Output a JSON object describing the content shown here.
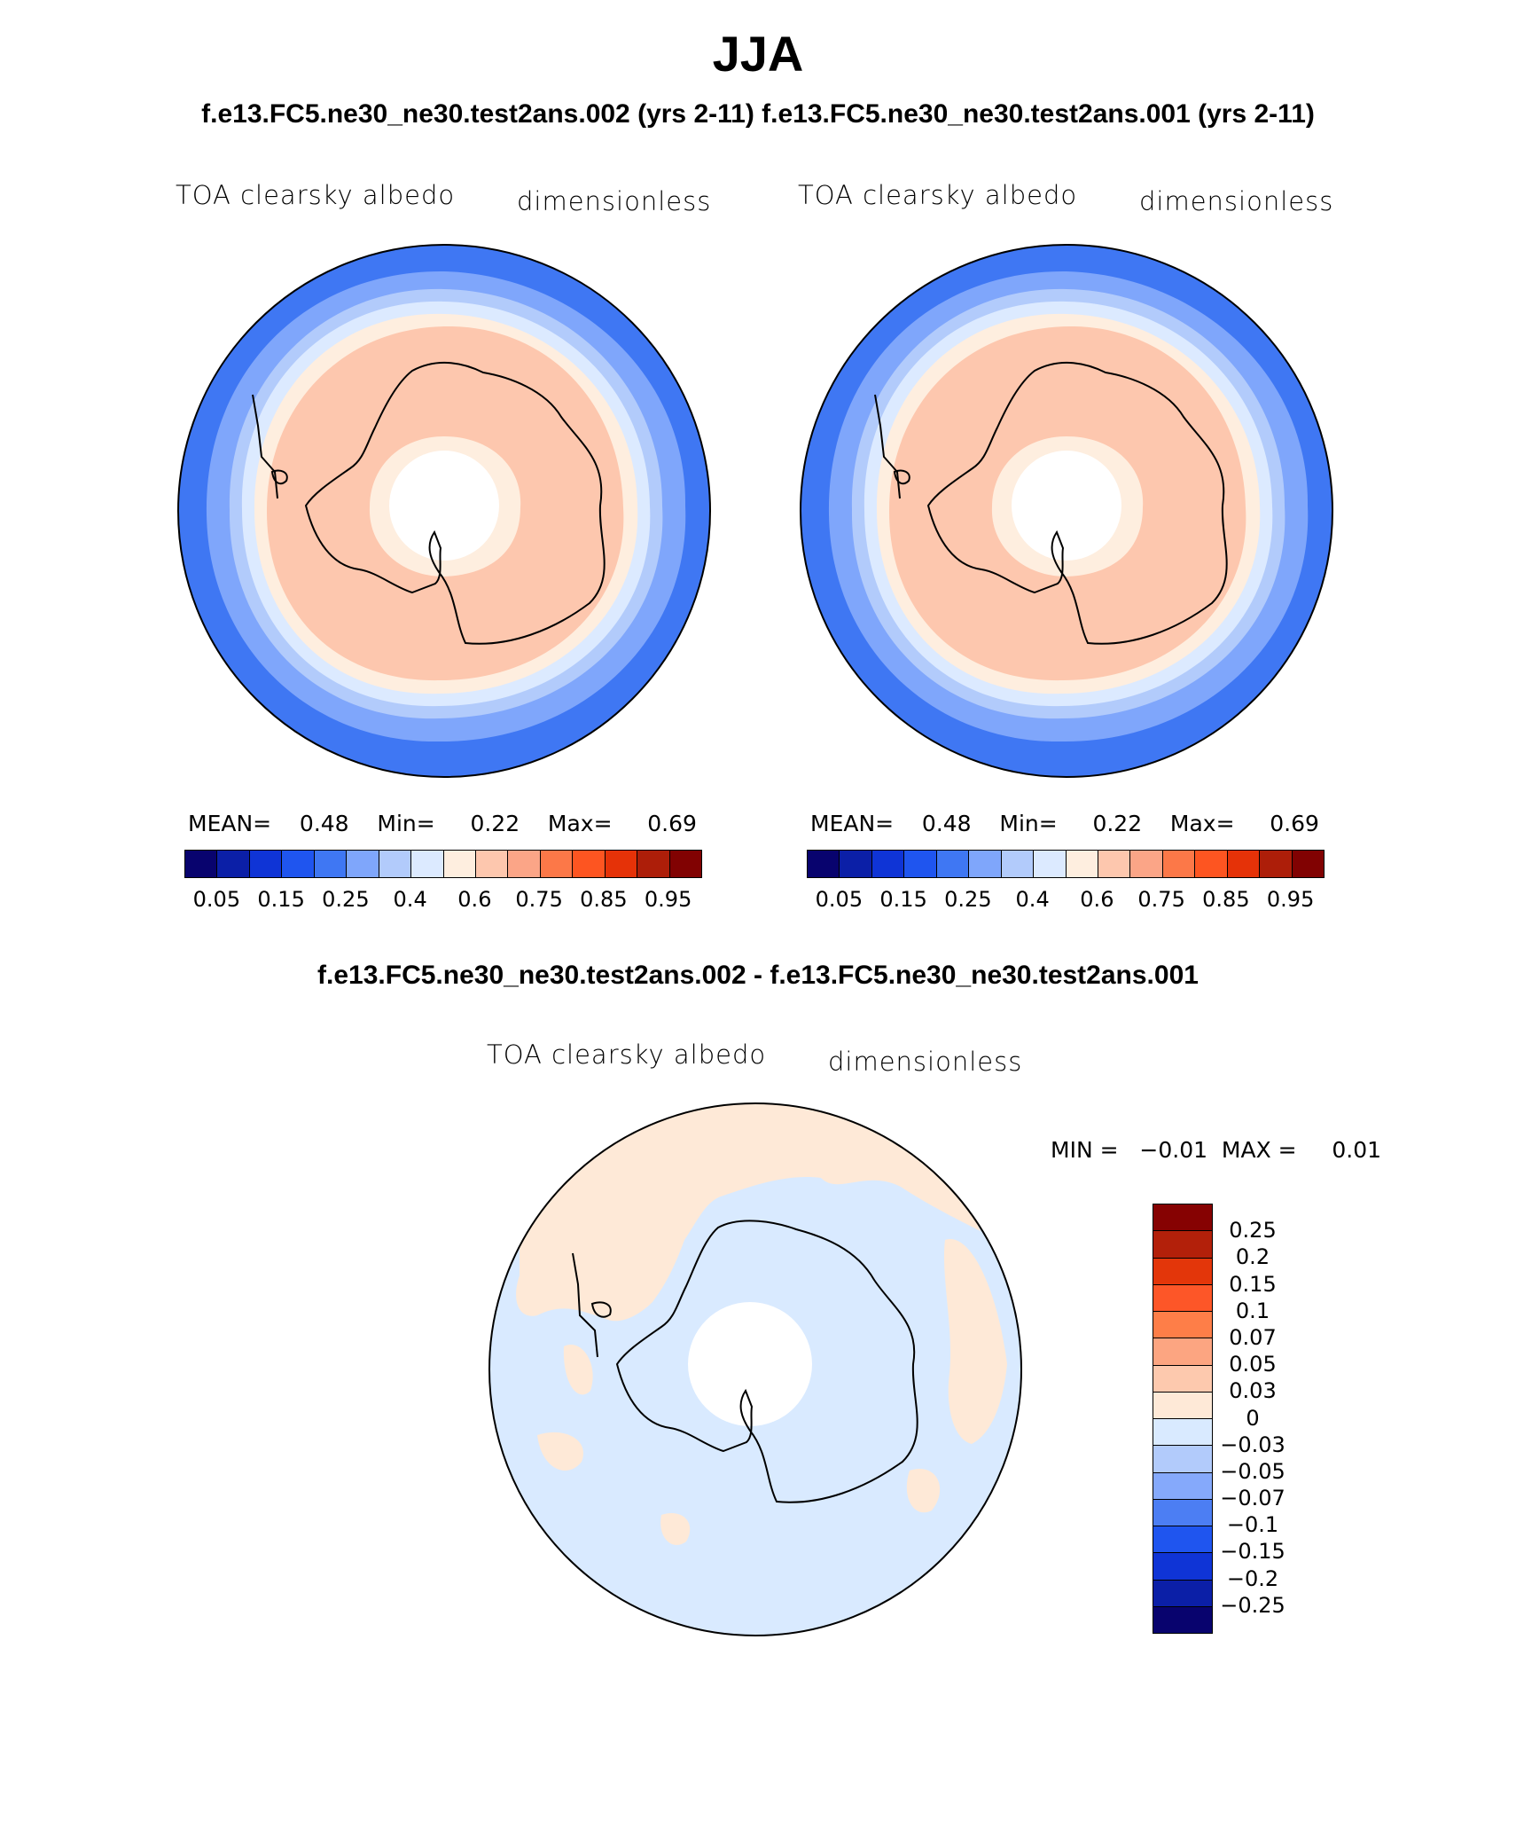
{
  "title": "JJA",
  "subtitle": "f.e13.FC5.ne30_ne30.test2ans.002 (yrs 2-11) f.e13.FC5.ne30_ne30.test2ans.001 (yrs 2-11)",
  "panels": [
    {
      "variable": "TOA clearsky albedo",
      "units": "dimensionless",
      "stats": {
        "mean_label": "MEAN=",
        "mean": "0.48",
        "min_label": "Min=",
        "min": "0.22",
        "max_label": "Max=",
        "max": "0.69"
      }
    },
    {
      "variable": "TOA clearsky albedo",
      "units": "dimensionless",
      "stats": {
        "mean_label": "MEAN=",
        "mean": "0.48",
        "min_label": "Min=",
        "min": "0.22",
        "max_label": "Max=",
        "max": "0.69"
      }
    }
  ],
  "colorbar": {
    "colors": [
      "#08036e",
      "#0b1fa7",
      "#0f34d6",
      "#1f55ef",
      "#3f77f3",
      "#7fa6fb",
      "#b2cbfb",
      "#dceaff",
      "#feeedf",
      "#fdc7ae",
      "#fba587",
      "#fc7848",
      "#fd5521",
      "#e53208",
      "#ad1e09",
      "#810202"
    ],
    "ticks": [
      "0.05",
      "0.15",
      "0.25",
      "0.4",
      "0.6",
      "0.75",
      "0.85",
      "0.95"
    ]
  },
  "diff": {
    "title": "f.e13.FC5.ne30_ne30.test2ans.002 - f.e13.FC5.ne30_ne30.test2ans.001",
    "variable": "TOA clearsky albedo",
    "units": "dimensionless",
    "stats": {
      "min_label": "MIN =",
      "min": "−0.01",
      "max_label": "MAX =",
      "max": "0.01"
    },
    "colorbar": {
      "colors": [
        "#860202",
        "#b3200a",
        "#e3360a",
        "#fd5628",
        "#fe7e48",
        "#fca581",
        "#fdc9ae",
        "#fee9d7",
        "#d9eaff",
        "#b2cbfb",
        "#85a9fb",
        "#4c7ef3",
        "#1f55ef",
        "#0f34d6",
        "#0b1fa7",
        "#08036e"
      ],
      "ticks": [
        "0.25",
        "0.2",
        "0.15",
        "0.1",
        "0.07",
        "0.05",
        "0.03",
        "0",
        "−0.03",
        "−0.05",
        "−0.07",
        "−0.1",
        "−0.15",
        "−0.2",
        "−0.25"
      ]
    }
  }
}
